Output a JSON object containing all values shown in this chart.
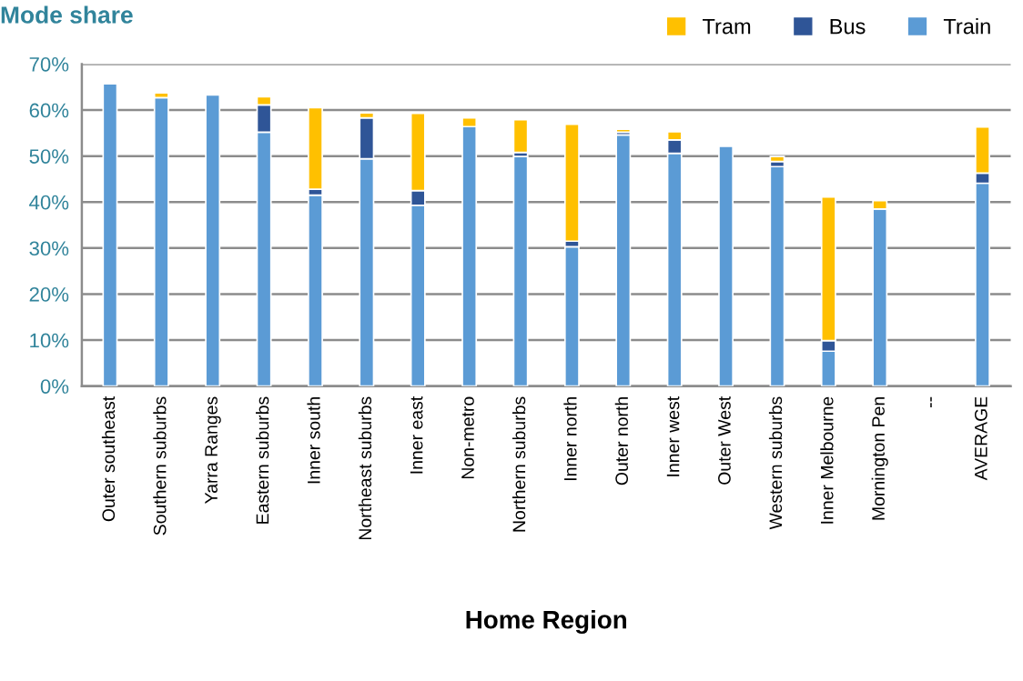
{
  "chart_data": {
    "type": "bar",
    "title": "Mode share",
    "xlabel": "Home Region",
    "stacked": true,
    "categories": [
      "Outer southeast",
      "Southern suburbs",
      "Yarra Ranges",
      "Eastern suburbs",
      "Inner south",
      "Northeast suburbs",
      "Inner east",
      "Non-metro",
      "Northern suburbs",
      "Inner north",
      "Outer north",
      "Inner west",
      "Outer West",
      "Western suburbs",
      "Inner Melbourne",
      "Mornington Pen",
      "--",
      "AVERAGE"
    ],
    "series": [
      {
        "name": "Train",
        "color": "#5b9bd5",
        "values": [
          65.7,
          62.7,
          63.3,
          55.2,
          41.5,
          49.4,
          39.3,
          56.4,
          49.9,
          30.3,
          54.6,
          50.6,
          52.1,
          47.7,
          7.6,
          38.5,
          null,
          44.1
        ]
      },
      {
        "name": "Bus",
        "color": "#2f5597",
        "values": [
          null,
          null,
          null,
          5.9,
          1.3,
          8.9,
          3.2,
          null,
          0.9,
          1.2,
          0.6,
          2.9,
          null,
          1.1,
          2.3,
          null,
          null,
          2.2
        ]
      },
      {
        "name": "Tram",
        "color": "#ffc000",
        "values": [
          null,
          1.0,
          null,
          1.8,
          17.7,
          1.1,
          16.8,
          1.9,
          7.1,
          25.4,
          0.6,
          1.8,
          null,
          1.1,
          31.2,
          1.8,
          null,
          10.0
        ]
      }
    ],
    "ylim": [
      0,
      70
    ],
    "yticks": [
      {
        "value": 0,
        "label": "0%"
      },
      {
        "value": 10,
        "label": "10%"
      },
      {
        "value": 20,
        "label": "20%"
      },
      {
        "value": 30,
        "label": "30%"
      },
      {
        "value": 40,
        "label": "40%"
      },
      {
        "value": 50,
        "label": "50%"
      },
      {
        "value": 60,
        "label": "60%"
      },
      {
        "value": 70,
        "label": "70%"
      }
    ],
    "grid": "y",
    "legend": "top right"
  }
}
